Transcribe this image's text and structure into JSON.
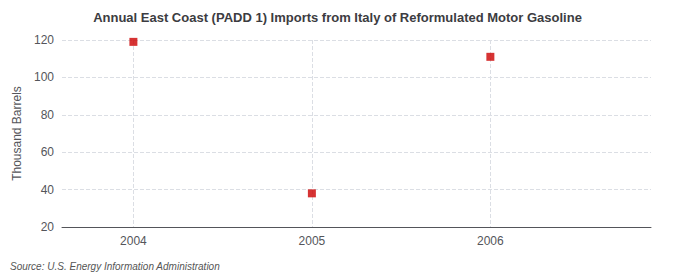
{
  "chart_data": {
    "type": "scatter",
    "title": "Annual East Coast (PADD 1) Imports from Italy of Reformulated Motor Gasoline",
    "ylabel": "Thousand Barrels",
    "annotations": [
      "Source: U.S. Energy Information Administration"
    ],
    "x": [
      2004,
      2005,
      2006
    ],
    "values": [
      119,
      38,
      111
    ],
    "color": "#cc0000",
    "marker": "square",
    "xlim": [
      2003.6,
      2006.9
    ],
    "xticks": [
      2004,
      2005,
      2006
    ],
    "ylim": [
      20,
      120
    ],
    "yticks": [
      20,
      40,
      60,
      80,
      100,
      120
    ],
    "grid": true
  }
}
